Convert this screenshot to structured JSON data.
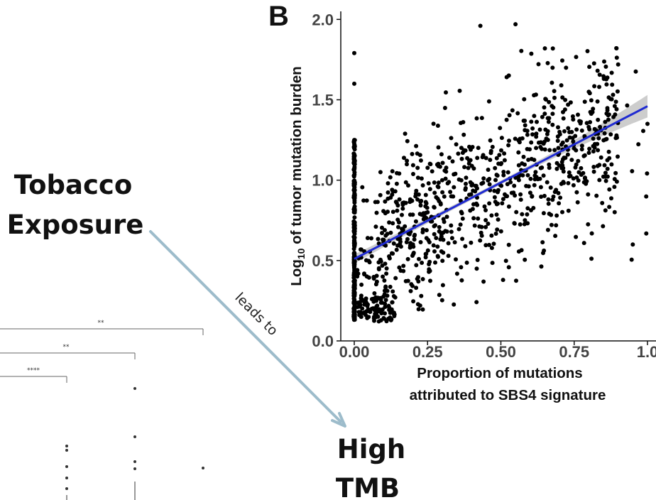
{
  "diagram": {
    "cause_line1": "Tobacco",
    "cause_line2": "Exposure",
    "effect_line1": "High",
    "effect_line2": "TMB",
    "arrow_label": "leads to",
    "arrow_color": "#9dbccb"
  },
  "background_plot": {
    "brackets": [
      {
        "label": "**"
      },
      {
        "label": "**"
      },
      {
        "label": "****"
      }
    ]
  },
  "chart_data": {
    "type": "scatter",
    "panel_label": "B",
    "xlabel_line1": "Proportion of mutations",
    "xlabel_line2": "attributed to SBS4 signature",
    "ylabel_prefix": "Log",
    "ylabel_subscript": "10",
    "ylabel_suffix": " of tumor mutation burden",
    "xlim": [
      0,
      1.0
    ],
    "ylim": [
      0,
      2.05
    ],
    "x_ticks": [
      "0.00",
      "0.25",
      "0.50",
      "0.75",
      "1.0"
    ],
    "y_ticks": [
      "0.0",
      "0.5",
      "1.0",
      "1.5",
      "2.0"
    ],
    "point_color": "#000000",
    "trend_color": "#1f2ad1",
    "ci_color": "#c4c4c4",
    "trend_line": {
      "intercept": 0.51,
      "slope": 0.95,
      "x_start": 0.0,
      "x_end": 1.0
    },
    "ci_halfwidth": {
      "at_start": 0.028,
      "at_mid": 0.012,
      "at_end": 0.07
    },
    "approx_point_count": 1200,
    "points_sample": [
      [
        0.0,
        1.79
      ],
      [
        0.0,
        1.6
      ],
      [
        0.0,
        1.25
      ],
      [
        0.0,
        1.1
      ],
      [
        0.0,
        0.9
      ],
      [
        0.0,
        0.7
      ],
      [
        0.0,
        0.5
      ],
      [
        0.0,
        0.3
      ],
      [
        0.0,
        0.14
      ],
      [
        0.07,
        0.15
      ],
      [
        0.12,
        0.2
      ],
      [
        0.2,
        0.6
      ],
      [
        0.25,
        0.8
      ],
      [
        0.3,
        1.0
      ],
      [
        0.38,
        0.95
      ],
      [
        0.43,
        1.96
      ],
      [
        0.5,
        1.1
      ],
      [
        0.55,
        1.97
      ],
      [
        0.62,
        1.2
      ],
      [
        0.65,
        1.82
      ],
      [
        0.7,
        1.3
      ],
      [
        0.8,
        1.55
      ],
      [
        0.9,
        1.72
      ],
      [
        0.95,
        0.6
      ],
      [
        1.0,
        1.35
      ]
    ]
  }
}
